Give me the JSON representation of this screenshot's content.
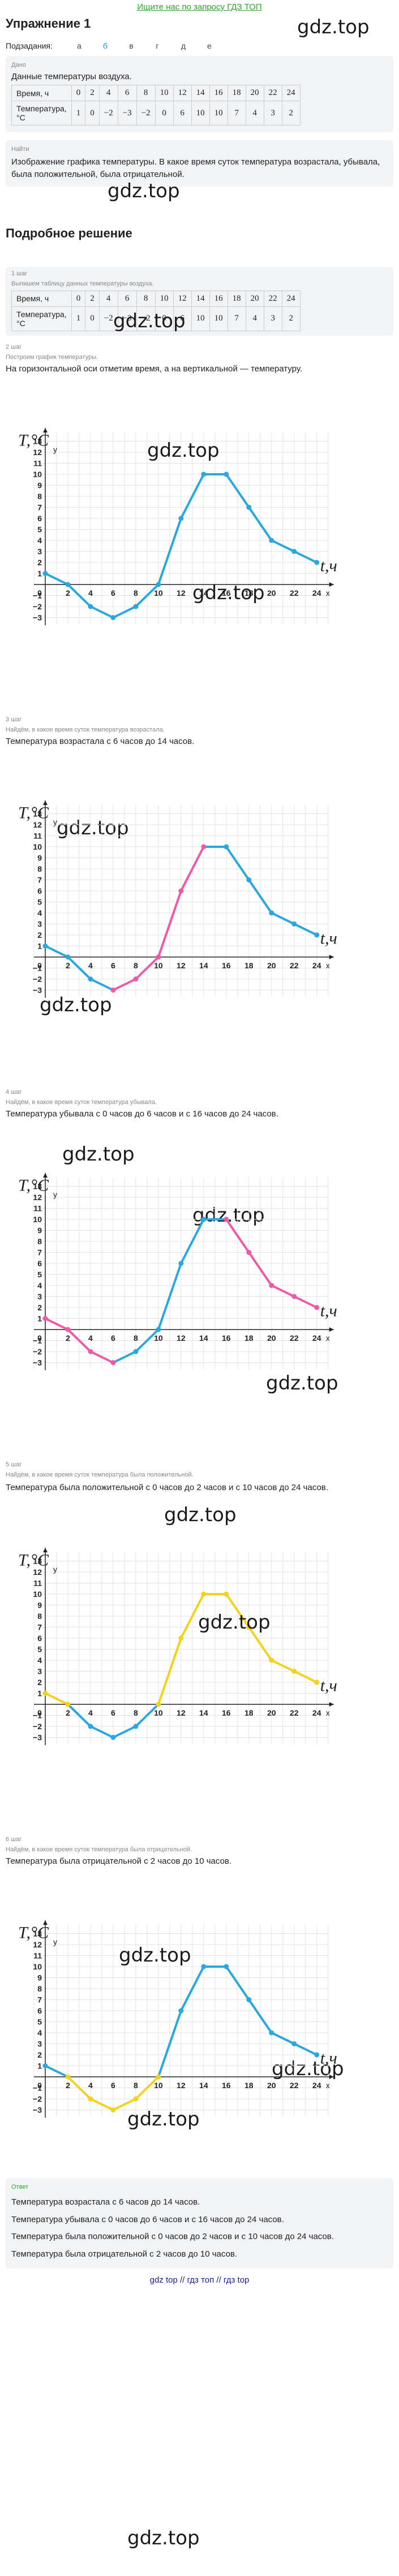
{
  "banner": "Ищите нас по запросу ГДЗ ТОП",
  "title": "Упражнение 1",
  "watermark": "gdz.top",
  "subtasks_label": "Подзадания:",
  "subtasks": [
    "а",
    "б",
    "в",
    "г",
    "д",
    "е"
  ],
  "given": {
    "tag": "Дано",
    "text": "Данные температуры воздуха.",
    "row1_label": "Время, ч",
    "row2_label": "Температура, °C",
    "times": [
      "0",
      "2",
      "4",
      "6",
      "8",
      "10",
      "12",
      "14",
      "16",
      "18",
      "20",
      "22",
      "24"
    ],
    "temps": [
      "1",
      "0",
      "−2",
      "−3",
      "−2",
      "0",
      "6",
      "10",
      "10",
      "7",
      "4",
      "3",
      "2"
    ]
  },
  "find": {
    "tag": "Найти",
    "text": "Изображение графика температуры. В какое время суток температура возрастала, убывала, была положительной, была отрицательной."
  },
  "solution_title": "Подробное решение",
  "steps": [
    {
      "tag": "1 шаг",
      "title": "Выпишем таблицу данных температуры воздуха."
    },
    {
      "tag": "2 шаг",
      "title": "Построим график температуры.",
      "text": "На горизонтальной оси отметим время, а на вертикальной — температуру."
    },
    {
      "tag": "3 шаг",
      "title": "Найдём, в какое время суток температура возрастала.",
      "text": "Температура возрастала с 6 часов до 14 часов."
    },
    {
      "tag": "4 шаг",
      "title": "Найдём, в какое время суток температура убывала.",
      "text": "Температура убывала с 0 часов до 6 часов и с 16 часов до 24 часов."
    },
    {
      "tag": "5 шаг",
      "title": "Найдём, в какое время суток температура была положительной.",
      "text": "Температура была положительной с 0 часов до 2 часов и с 10 часов до 24 часов."
    },
    {
      "tag": "6 шаг",
      "title": "Найдём, в какое время суток температура была отрицательной.",
      "text": "Температура была отрицательной с 2 часов до 10 часов."
    }
  ],
  "answer": {
    "tag": "Ответ",
    "lines": [
      "Температура возрастала с 6 часов до 14 часов.",
      "Температура убывала с 0 часов до 6 часов и с 16 часов до 24 часов.",
      "Температура была положительной с 0 часов до 2 часов и с 10 часов до 24 часов.",
      "Температура была отрицательной с 2 часов до 10 часов."
    ]
  },
  "footer": "gdz top  //  гдз топ  //  гдз top",
  "chart_data": [
    {
      "type": "line",
      "xlabel": "t, ч",
      "ylabel": "T, °C",
      "x": [
        0,
        2,
        4,
        6,
        8,
        10,
        12,
        14,
        16,
        18,
        20,
        22,
        24
      ],
      "series": [
        {
          "values": [
            1,
            0,
            -2,
            -3,
            -2,
            0,
            6,
            10,
            10,
            7,
            4,
            3,
            2
          ]
        }
      ],
      "xlim": [
        0,
        24
      ],
      "ylim": [
        -3,
        13
      ],
      "grid": true,
      "highlight": "none",
      "colors": {
        "base": "#29a8e0"
      }
    },
    {
      "type": "line",
      "xlabel": "t, ч",
      "ylabel": "T, °C",
      "x": [
        0,
        2,
        4,
        6,
        8,
        10,
        12,
        14,
        16,
        18,
        20,
        22,
        24
      ],
      "series": [
        {
          "values": [
            1,
            0,
            -2,
            -3,
            -2,
            0,
            6,
            10,
            10,
            7,
            4,
            3,
            2
          ]
        }
      ],
      "highlight": "increasing 6–14",
      "colors": {
        "base": "#29a8e0",
        "highlight": "#ee5aa8"
      }
    },
    {
      "type": "line",
      "xlabel": "t, ч",
      "ylabel": "T, °C",
      "x": [
        0,
        2,
        4,
        6,
        8,
        10,
        12,
        14,
        16,
        18,
        20,
        22,
        24
      ],
      "series": [
        {
          "values": [
            1,
            0,
            -2,
            -3,
            -2,
            0,
            6,
            10,
            10,
            7,
            4,
            3,
            2
          ]
        }
      ],
      "highlight": "decreasing 0–6, 16–24",
      "colors": {
        "base": "#29a8e0",
        "highlight": "#ee5aa8"
      }
    },
    {
      "type": "line",
      "xlabel": "t, ч",
      "ylabel": "T, °C",
      "x": [
        0,
        2,
        4,
        6,
        8,
        10,
        12,
        14,
        16,
        18,
        20,
        22,
        24
      ],
      "series": [
        {
          "values": [
            1,
            0,
            -2,
            -3,
            -2,
            0,
            6,
            10,
            10,
            7,
            4,
            3,
            2
          ]
        }
      ],
      "highlight": "positive 0–2, 10–24",
      "colors": {
        "base": "#29a8e0",
        "highlight": "#f2d21b"
      }
    },
    {
      "type": "line",
      "xlabel": "t, ч",
      "ylabel": "T, °C",
      "x": [
        0,
        2,
        4,
        6,
        8,
        10,
        12,
        14,
        16,
        18,
        20,
        22,
        24
      ],
      "series": [
        {
          "values": [
            1,
            0,
            -2,
            -3,
            -2,
            0,
            6,
            10,
            10,
            7,
            4,
            3,
            2
          ]
        }
      ],
      "highlight": "negative 2–10",
      "colors": {
        "base": "#29a8e0",
        "highlight": "#f2d21b"
      }
    }
  ]
}
